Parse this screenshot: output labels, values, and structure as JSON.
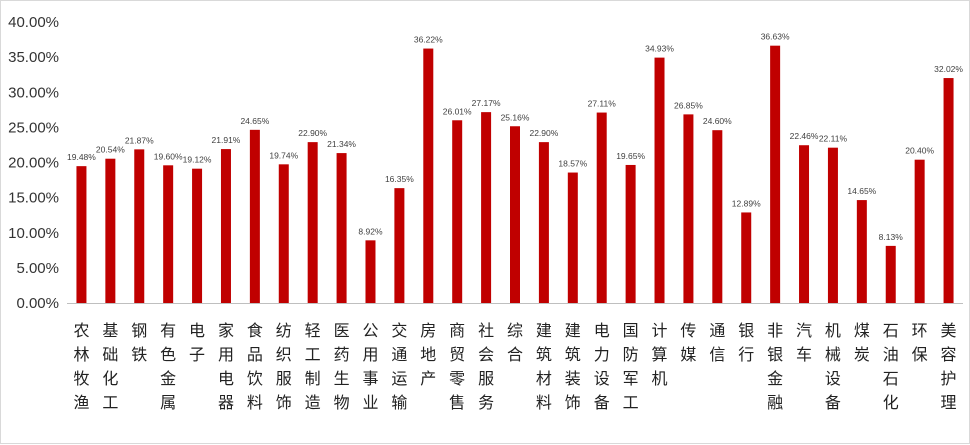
{
  "chart_data": {
    "type": "bar",
    "title": "",
    "xlabel": "",
    "ylabel": "",
    "ylim": [
      0,
      40
    ],
    "y_ticks": [
      "0.00%",
      "5.00%",
      "10.00%",
      "15.00%",
      "20.00%",
      "25.00%",
      "30.00%",
      "35.00%",
      "40.00%"
    ],
    "grid": false,
    "legend": "none",
    "bar_color": "#c00000",
    "categories": [
      "农林牧渔",
      "基础化工",
      "钢铁",
      "有色金属",
      "电子",
      "家用电器",
      "食品饮料",
      "纺织服饰",
      "轻工制造",
      "医药生物",
      "公用事业",
      "交通运输",
      "房地产",
      "商贸零售",
      "社会服务",
      "综合",
      "建筑材料",
      "建筑装饰",
      "电力设备",
      "国防军工",
      "计算机",
      "传媒",
      "通信",
      "银行",
      "非银金融",
      "汽车",
      "机械设备",
      "煤炭",
      "石油石化",
      "环保",
      "美容护理"
    ],
    "values": [
      19.48,
      20.54,
      21.87,
      19.6,
      19.12,
      21.91,
      24.65,
      19.74,
      22.9,
      21.34,
      8.92,
      16.35,
      36.22,
      26.01,
      27.17,
      25.16,
      22.9,
      18.57,
      27.11,
      19.65,
      34.93,
      26.85,
      24.6,
      12.89,
      36.63,
      22.46,
      22.11,
      14.65,
      8.13,
      20.4,
      32.02
    ],
    "data_labels": [
      "19.48%",
      "20.54%",
      "21.87%",
      "19.60%",
      "19.12%",
      "21.91%",
      "24.65%",
      "19.74%",
      "22.90%",
      "21.34%",
      "8.92%",
      "16.35%",
      "36.22%",
      "26.01%",
      "27.17%",
      "25.16%",
      "22.90%",
      "18.57%",
      "27.11%",
      "19.65%",
      "34.93%",
      "26.85%",
      "24.60%",
      "12.89%",
      "36.63%",
      "22.46%",
      "22.11%",
      "14.65%",
      "8.13%",
      "20.40%",
      "32.02%"
    ]
  }
}
